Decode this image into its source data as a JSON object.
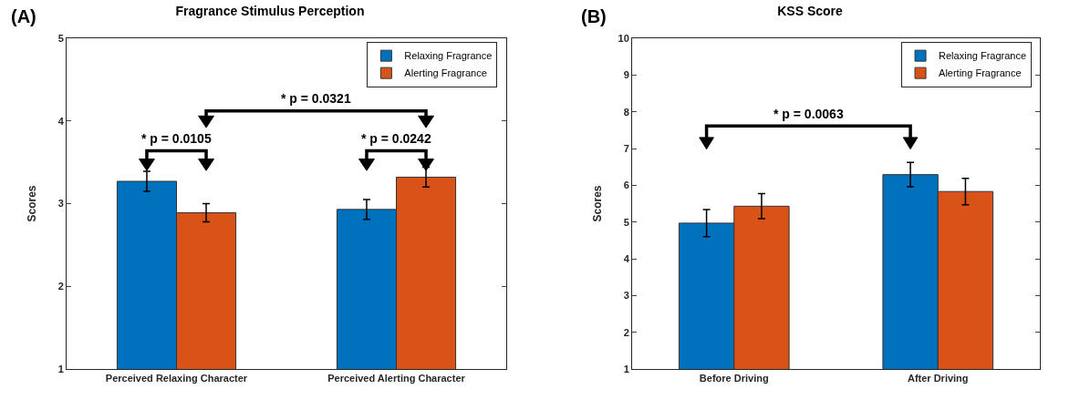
{
  "chart_data": [
    {
      "type": "bar",
      "title": "Fragrance Stimulus Perception",
      "ylabel": "Scores",
      "categories": [
        "Perceived Relaxing Character",
        "Perceived Alerting Character"
      ],
      "series": [
        {
          "name": "Relaxing Fragrance",
          "color": "#0072bd",
          "values": [
            3.27,
            2.93
          ],
          "errors": [
            0.12,
            0.12
          ]
        },
        {
          "name": "Alerting Fragrance",
          "color": "#d95319",
          "values": [
            2.89,
            3.32
          ],
          "errors": [
            0.11,
            0.12
          ]
        }
      ],
      "ylim": [
        1,
        5
      ],
      "yticks": [
        1,
        2,
        3,
        4,
        5
      ],
      "grid": false,
      "legend": "top right",
      "annotations": [
        "(A)",
        "* p = 0.0105",
        "* p = 0.0242",
        "* p = 0.0321"
      ]
    },
    {
      "type": "bar",
      "title": "KSS Score",
      "ylabel": "Scores",
      "categories": [
        "Before Driving",
        "After Driving"
      ],
      "series": [
        {
          "name": "Relaxing Fragrance",
          "color": "#0072bd",
          "values": [
            4.97,
            6.29
          ],
          "errors": [
            0.37,
            0.33
          ]
        },
        {
          "name": "Alerting Fragrance",
          "color": "#d95319",
          "values": [
            5.43,
            5.83
          ],
          "errors": [
            0.34,
            0.36
          ]
        }
      ],
      "ylim": [
        1,
        10
      ],
      "yticks": [
        1,
        2,
        3,
        4,
        5,
        6,
        7,
        8,
        9,
        10
      ],
      "grid": false,
      "legend": "top right",
      "annotations": [
        "(B)",
        "* p = 0.0063"
      ]
    }
  ]
}
